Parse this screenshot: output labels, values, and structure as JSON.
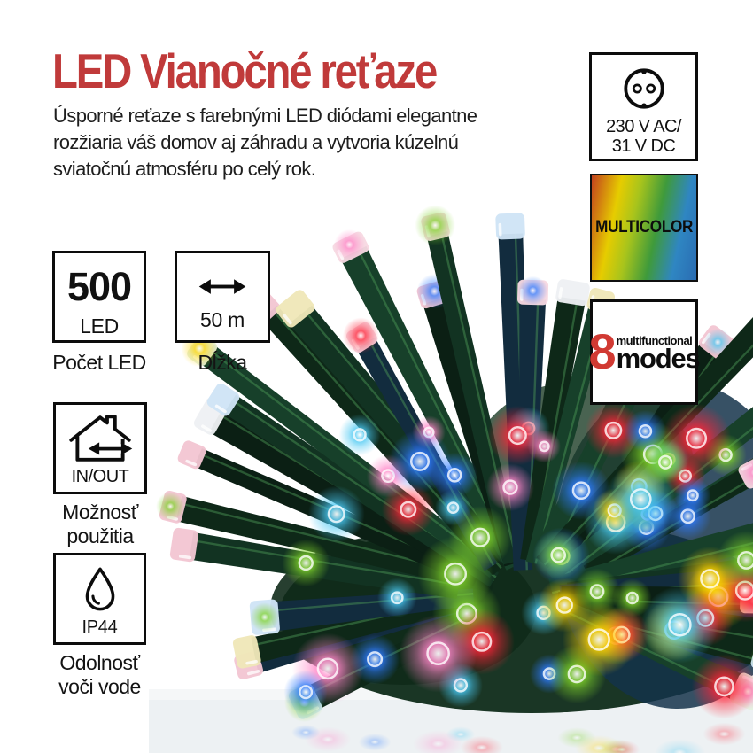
{
  "meta": {
    "language": "sk",
    "background": "#ffffff"
  },
  "header": {
    "title": "LED Vianočné reťaze",
    "title_color": "#c03a3a",
    "description_lines": [
      "Úsporné reťaze s farebnými LED diódami elegantne",
      "rozžiaria váš domov aj záhradu a vytvoria kúzelnú",
      "sviatočnú atmosféru po celý rok."
    ]
  },
  "badges": {
    "power": {
      "icon": "schuko-socket-icon",
      "voltage_line1": "230 V AC/",
      "voltage_line2": "31 V DC"
    },
    "multicolor": {
      "label": "MULTICOLOR",
      "gradient_stops": [
        "#c2411e",
        "#e6cc00",
        "#a8c41c",
        "#3f9a3b",
        "#2f86c2",
        "#2a6cb2"
      ]
    },
    "modes": {
      "count": "8",
      "count_color": "#d13a33",
      "label_top": "multifunctional",
      "label_bottom": "modes"
    }
  },
  "specs": {
    "led_count": {
      "value": "500",
      "unit": "LED",
      "caption": "Počet LED"
    },
    "length": {
      "icon": "double-arrow-icon",
      "value": "50 m",
      "caption": "Dĺžka"
    },
    "usage": {
      "icon": "house-in-out-icon",
      "value": "IN/OUT",
      "caption": "Možnosť použitia"
    },
    "water_resistance": {
      "icon": "water-drop-icon",
      "value": "IP44",
      "caption": "Odolnosť voči vode"
    }
  },
  "photo": {
    "alt": "Bundle of multicolor LED string lights with green wires on a glossy white surface",
    "wire_colors": [
      "#123322",
      "#0e2818",
      "#17402a",
      "#122c3e",
      "#0b1f14"
    ],
    "bulb_colors": [
      "#ff2438",
      "#ffd400",
      "#2e7bff",
      "#7fd32a",
      "#ff86c8",
      "#49c8f2"
    ],
    "cap_colors": [
      "#f3c6d2",
      "#cfe4f6",
      "#efe7b8",
      "#e4f0e0",
      "#eef0f4",
      "#f7d9e2"
    ]
  }
}
